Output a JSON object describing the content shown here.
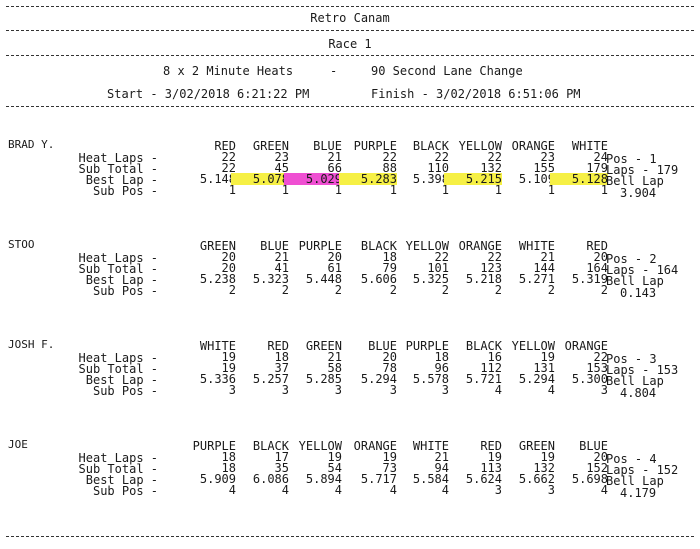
{
  "header": {
    "title": "Retro Canam",
    "race": "Race 1",
    "heats": "8 x 2 Minute Heats",
    "separator": "-",
    "lane_change": "90 Second Lane Change",
    "start": "Start - 3/02/2018 6:21:22 PM",
    "finish": "Finish - 3/02/2018 6:51:06 PM"
  },
  "row_labels": [
    "Heat Laps -",
    "Sub Total -",
    "Best Lap -",
    "Sub Pos -"
  ],
  "highlight_colors": {
    "yellow": "#f6f045",
    "pink": "#ef4fd2"
  },
  "racers": [
    {
      "name": "BRAD Y.",
      "lanes": [
        "RED",
        "GREEN",
        "BLUE",
        "PURPLE",
        "BLACK",
        "YELLOW",
        "ORANGE",
        "WHITE"
      ],
      "heat_laps": [
        "22",
        "23",
        "21",
        "22",
        "22",
        "22",
        "23",
        "24"
      ],
      "sub_total": [
        "22",
        "45",
        "66",
        "88",
        "110",
        "132",
        "155",
        "179"
      ],
      "best_lap": [
        "5.148",
        "5.078",
        "5.029",
        "5.283",
        "5.398",
        "5.215",
        "5.109",
        "5.128"
      ],
      "sub_pos": [
        "1",
        "1",
        "1",
        "1",
        "1",
        "1",
        "1",
        "1"
      ],
      "highlights": [
        "",
        "yellow",
        "pink",
        "yellow",
        "",
        "yellow",
        "",
        "yellow"
      ],
      "pos": "Pos - 1",
      "laps": "Laps - 179",
      "bell_label": "Bell Lap",
      "bell_value": "3.904"
    },
    {
      "name": "STOO",
      "lanes": [
        "GREEN",
        "BLUE",
        "PURPLE",
        "BLACK",
        "YELLOW",
        "ORANGE",
        "WHITE",
        "RED"
      ],
      "heat_laps": [
        "20",
        "21",
        "20",
        "18",
        "22",
        "22",
        "21",
        "20"
      ],
      "sub_total": [
        "20",
        "41",
        "61",
        "79",
        "101",
        "123",
        "144",
        "164"
      ],
      "best_lap": [
        "5.238",
        "5.323",
        "5.448",
        "5.606",
        "5.325",
        "5.218",
        "5.271",
        "5.319"
      ],
      "sub_pos": [
        "2",
        "2",
        "2",
        "2",
        "2",
        "2",
        "2",
        "2"
      ],
      "highlights": [
        "",
        "",
        "",
        "",
        "",
        "",
        "",
        ""
      ],
      "pos": "Pos - 2",
      "laps": "Laps - 164",
      "bell_label": "Bell Lap",
      "bell_value": "0.143"
    },
    {
      "name": "JOSH F.",
      "lanes": [
        "WHITE",
        "RED",
        "GREEN",
        "BLUE",
        "PURPLE",
        "BLACK",
        "YELLOW",
        "ORANGE"
      ],
      "heat_laps": [
        "19",
        "18",
        "21",
        "20",
        "18",
        "16",
        "19",
        "22"
      ],
      "sub_total": [
        "19",
        "37",
        "58",
        "78",
        "96",
        "112",
        "131",
        "153"
      ],
      "best_lap": [
        "5.336",
        "5.257",
        "5.285",
        "5.294",
        "5.578",
        "5.721",
        "5.294",
        "5.300"
      ],
      "sub_pos": [
        "3",
        "3",
        "3",
        "3",
        "3",
        "4",
        "4",
        "3"
      ],
      "highlights": [
        "",
        "",
        "",
        "",
        "",
        "",
        "",
        ""
      ],
      "pos": "Pos - 3",
      "laps": "Laps - 153",
      "bell_label": "Bell Lap",
      "bell_value": "4.804"
    },
    {
      "name": "JOE",
      "lanes": [
        "PURPLE",
        "BLACK",
        "YELLOW",
        "ORANGE",
        "WHITE",
        "RED",
        "GREEN",
        "BLUE"
      ],
      "heat_laps": [
        "18",
        "17",
        "19",
        "19",
        "21",
        "19",
        "19",
        "20"
      ],
      "sub_total": [
        "18",
        "35",
        "54",
        "73",
        "94",
        "113",
        "132",
        "152"
      ],
      "best_lap": [
        "5.909",
        "6.086",
        "5.894",
        "5.717",
        "5.584",
        "5.624",
        "5.662",
        "5.698"
      ],
      "sub_pos": [
        "4",
        "4",
        "4",
        "4",
        "4",
        "3",
        "3",
        "4"
      ],
      "highlights": [
        "",
        "",
        "",
        "",
        "",
        "",
        "",
        ""
      ],
      "pos": "Pos - 4",
      "laps": "Laps - 152",
      "bell_label": "Bell Lap",
      "bell_value": "4.179"
    }
  ]
}
